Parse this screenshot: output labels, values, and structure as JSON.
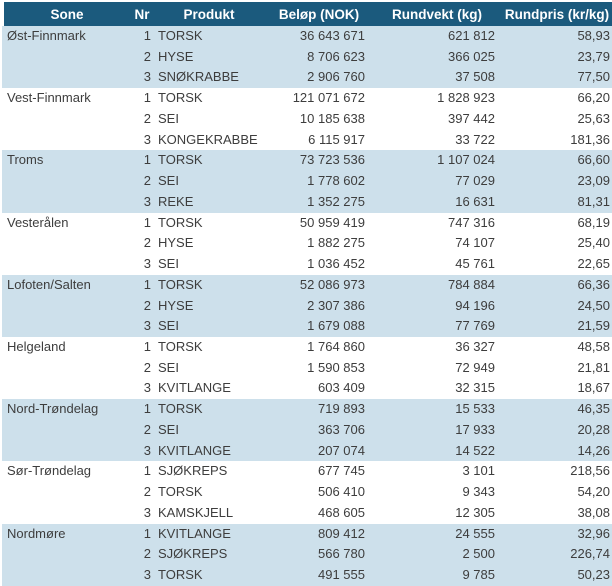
{
  "colors": {
    "header_bg": "#1b5a7d",
    "header_text": "#ffffff",
    "row_alt_bg": "#cde0eb",
    "row_bg": "#ffffff",
    "text": "#3d3d3d"
  },
  "chart_data": {
    "type": "table",
    "columns": [
      {
        "key": "sone",
        "label": "Sone"
      },
      {
        "key": "nr",
        "label": "Nr"
      },
      {
        "key": "produkt",
        "label": "Produkt"
      },
      {
        "key": "belop",
        "label": "Beløp (NOK)"
      },
      {
        "key": "rundvekt",
        "label": "Rundvekt (kg)"
      },
      {
        "key": "rundpris",
        "label": "Rundpris (kr/kg)"
      }
    ],
    "groups": [
      {
        "sone": "Øst-Finnmark",
        "rows": [
          {
            "nr": "1",
            "produkt": "TORSK",
            "belop": "36 643 671",
            "rundvekt": "621 812",
            "rundpris": "58,93"
          },
          {
            "nr": "2",
            "produkt": "HYSE",
            "belop": "8 706 623",
            "rundvekt": "366 025",
            "rundpris": "23,79"
          },
          {
            "nr": "3",
            "produkt": "SNØKRABBE",
            "belop": "2 906 760",
            "rundvekt": "37 508",
            "rundpris": "77,50"
          }
        ]
      },
      {
        "sone": "Vest-Finnmark",
        "rows": [
          {
            "nr": "1",
            "produkt": "TORSK",
            "belop": "121 071 672",
            "rundvekt": "1 828 923",
            "rundpris": "66,20"
          },
          {
            "nr": "2",
            "produkt": "SEI",
            "belop": "10 185 638",
            "rundvekt": "397 442",
            "rundpris": "25,63"
          },
          {
            "nr": "3",
            "produkt": "KONGEKRABBE",
            "belop": "6 115 917",
            "rundvekt": "33 722",
            "rundpris": "181,36"
          }
        ]
      },
      {
        "sone": "Troms",
        "rows": [
          {
            "nr": "1",
            "produkt": "TORSK",
            "belop": "73 723 536",
            "rundvekt": "1 107 024",
            "rundpris": "66,60"
          },
          {
            "nr": "2",
            "produkt": "SEI",
            "belop": "1 778 602",
            "rundvekt": "77 029",
            "rundpris": "23,09"
          },
          {
            "nr": "3",
            "produkt": "REKE",
            "belop": "1 352 275",
            "rundvekt": "16 631",
            "rundpris": "81,31"
          }
        ]
      },
      {
        "sone": "Vesterålen",
        "rows": [
          {
            "nr": "1",
            "produkt": "TORSK",
            "belop": "50 959 419",
            "rundvekt": "747 316",
            "rundpris": "68,19"
          },
          {
            "nr": "2",
            "produkt": "HYSE",
            "belop": "1 882 275",
            "rundvekt": "74 107",
            "rundpris": "25,40"
          },
          {
            "nr": "3",
            "produkt": "SEI",
            "belop": "1 036 452",
            "rundvekt": "45 761",
            "rundpris": "22,65"
          }
        ]
      },
      {
        "sone": "Lofoten/Salten",
        "rows": [
          {
            "nr": "1",
            "produkt": "TORSK",
            "belop": "52 086 973",
            "rundvekt": "784 884",
            "rundpris": "66,36"
          },
          {
            "nr": "2",
            "produkt": "HYSE",
            "belop": "2 307 386",
            "rundvekt": "94 196",
            "rundpris": "24,50"
          },
          {
            "nr": "3",
            "produkt": "SEI",
            "belop": "1 679 088",
            "rundvekt": "77 769",
            "rundpris": "21,59"
          }
        ]
      },
      {
        "sone": "Helgeland",
        "rows": [
          {
            "nr": "1",
            "produkt": "TORSK",
            "belop": "1 764 860",
            "rundvekt": "36 327",
            "rundpris": "48,58"
          },
          {
            "nr": "2",
            "produkt": "SEI",
            "belop": "1 590 853",
            "rundvekt": "72 949",
            "rundpris": "21,81"
          },
          {
            "nr": "3",
            "produkt": "KVITLANGE",
            "belop": "603 409",
            "rundvekt": "32 315",
            "rundpris": "18,67"
          }
        ]
      },
      {
        "sone": "Nord-Trøndelag",
        "rows": [
          {
            "nr": "1",
            "produkt": "TORSK",
            "belop": "719 893",
            "rundvekt": "15 533",
            "rundpris": "46,35"
          },
          {
            "nr": "2",
            "produkt": "SEI",
            "belop": "363 706",
            "rundvekt": "17 933",
            "rundpris": "20,28"
          },
          {
            "nr": "3",
            "produkt": "KVITLANGE",
            "belop": "207 074",
            "rundvekt": "14 522",
            "rundpris": "14,26"
          }
        ]
      },
      {
        "sone": "Sør-Trøndelag",
        "rows": [
          {
            "nr": "1",
            "produkt": "SJØKREPS",
            "belop": "677 745",
            "rundvekt": "3 101",
            "rundpris": "218,56"
          },
          {
            "nr": "2",
            "produkt": "TORSK",
            "belop": "506 410",
            "rundvekt": "9 343",
            "rundpris": "54,20"
          },
          {
            "nr": "3",
            "produkt": "KAMSKJELL",
            "belop": "468 605",
            "rundvekt": "12 305",
            "rundpris": "38,08"
          }
        ]
      },
      {
        "sone": "Nordmøre",
        "rows": [
          {
            "nr": "1",
            "produkt": "KVITLANGE",
            "belop": "809 412",
            "rundvekt": "24 555",
            "rundpris": "32,96"
          },
          {
            "nr": "2",
            "produkt": "SJØKREPS",
            "belop": "566 780",
            "rundvekt": "2 500",
            "rundpris": "226,74"
          },
          {
            "nr": "3",
            "produkt": "TORSK",
            "belop": "491 555",
            "rundvekt": "9 785",
            "rundpris": "50,23"
          }
        ]
      }
    ]
  }
}
